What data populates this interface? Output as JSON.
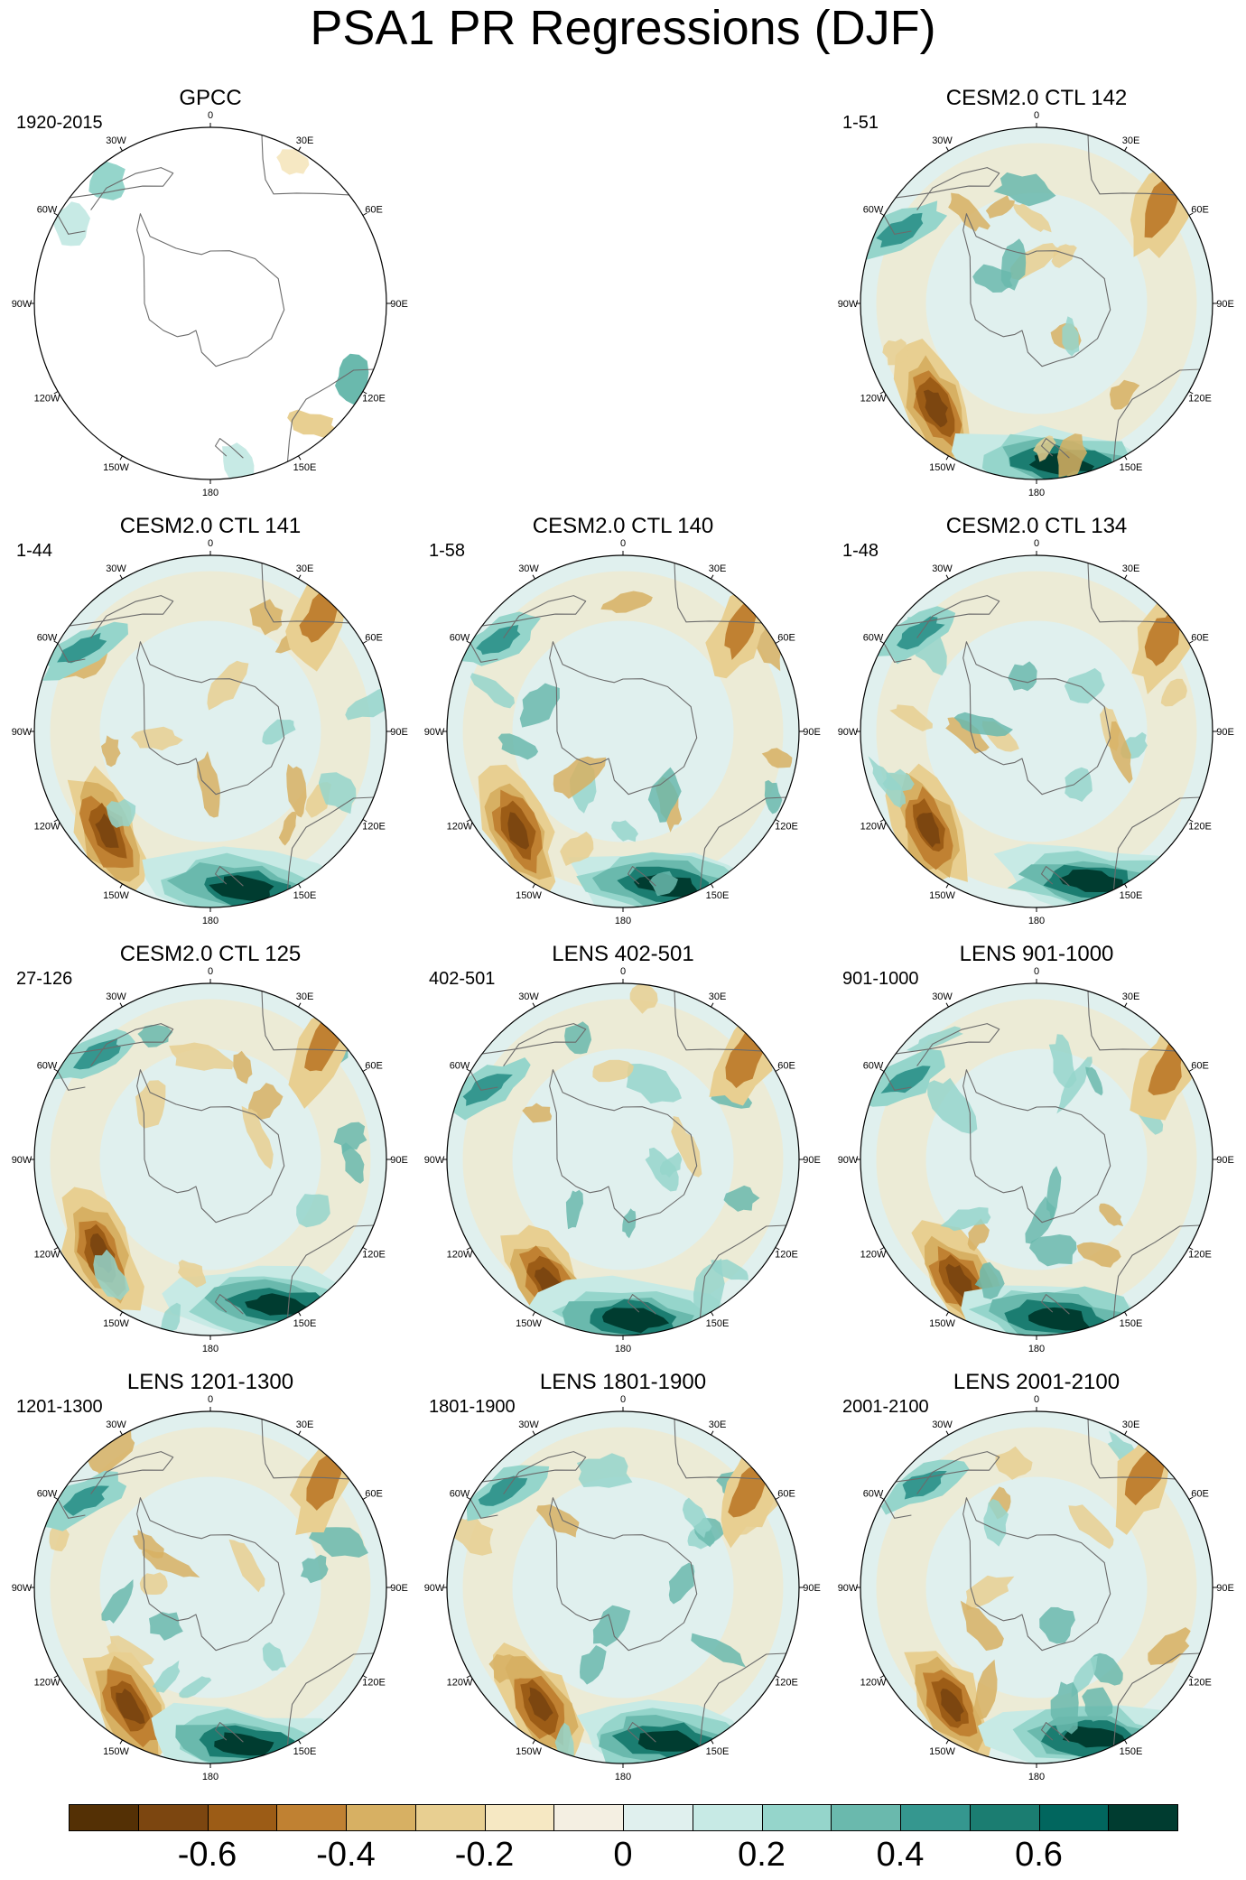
{
  "title": "PSA1 PR Regressions (DJF)",
  "longitude_labels": [
    "0",
    "30E",
    "60E",
    "90E",
    "120E",
    "150E",
    "180",
    "150W",
    "120W",
    "90W",
    "60W",
    "30W"
  ],
  "panels": [
    {
      "title": "GPCC",
      "period": "1920-2015",
      "type": "observation"
    },
    {
      "title": "CESM2.0 CTL 142",
      "period": "1-51",
      "type": "model"
    },
    {
      "title": "CESM2.0 CTL 141",
      "period": "1-44",
      "type": "model"
    },
    {
      "title": "CESM2.0 CTL 140",
      "period": "1-58",
      "type": "model"
    },
    {
      "title": "CESM2.0 CTL 134",
      "period": "1-48",
      "type": "model"
    },
    {
      "title": "CESM2.0 CTL 125",
      "period": "27-126",
      "type": "model"
    },
    {
      "title": "LENS 402-501",
      "period": "402-501",
      "type": "model"
    },
    {
      "title": "LENS 901-1000",
      "period": "901-1000",
      "type": "model"
    },
    {
      "title": "LENS 1201-1300",
      "period": "1201-1300",
      "type": "model"
    },
    {
      "title": "LENS 1801-1900",
      "period": "1801-1900",
      "type": "model"
    },
    {
      "title": "LENS 2001-2100",
      "period": "2001-2100",
      "type": "model"
    }
  ],
  "colorbar": {
    "colors": [
      "#543005",
      "#7c4610",
      "#9c5c16",
      "#c08132",
      "#d7b063",
      "#e8cf91",
      "#f6e8c3",
      "#f4efe2",
      "#e0f0ee",
      "#c7eae5",
      "#95d5cb",
      "#6ab9ad",
      "#35978f",
      "#1b7d71",
      "#01665e",
      "#003c30"
    ],
    "tick_labels": [
      "-0.6",
      "-0.4",
      "-0.2",
      "0",
      "0.2",
      "0.4",
      "0.6"
    ]
  }
}
